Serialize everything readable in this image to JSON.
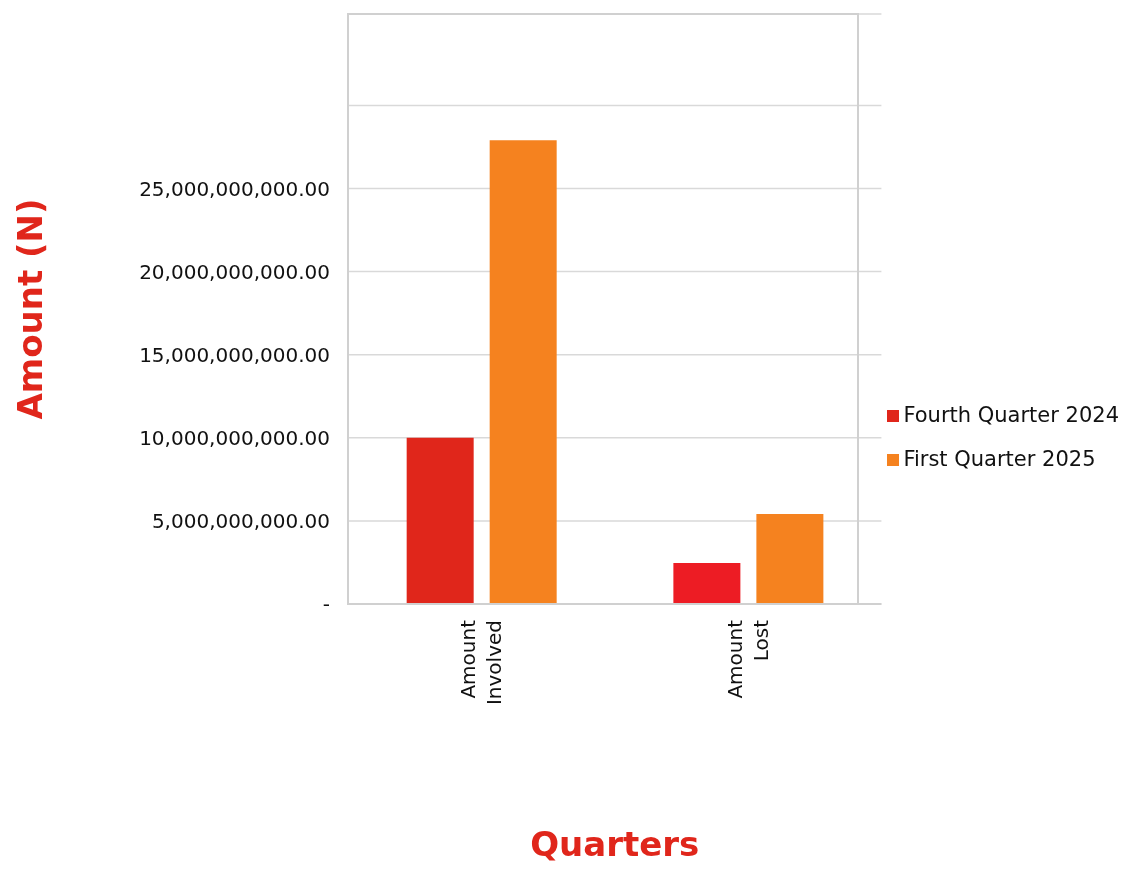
{
  "chart_data": {
    "type": "bar",
    "xlabel": "Quarters",
    "ylabel": "Amount (N)",
    "categories": [
      "Amount Involved",
      "Amount Lost"
    ],
    "series": [
      {
        "name": "Fourth Quarter 2024",
        "color": "#e0261b",
        "colors": [
          "#e0261b",
          "#ed1c24"
        ],
        "values": [
          10000000000,
          2470000000
        ]
      },
      {
        "name": "First Quarter 2025",
        "color": "#f5821f",
        "values": [
          27900000000,
          5420000000
        ]
      }
    ],
    "ylim": [
      0,
      35500000000
    ],
    "yticks": [
      {
        "value": 0,
        "label": "-"
      },
      {
        "value": 5000000000,
        "label": "5,000,000,000.00"
      },
      {
        "value": 10000000000,
        "label": "10,000,000,000.00"
      },
      {
        "value": 15000000000,
        "label": "15,000,000,000.00"
      },
      {
        "value": 20000000000,
        "label": "20,000,000,000.00"
      },
      {
        "value": 25000000000,
        "label": "25,000,000,000.00"
      },
      {
        "value": 30000000000,
        "label": null
      }
    ],
    "grid": "y",
    "legend": "right"
  }
}
